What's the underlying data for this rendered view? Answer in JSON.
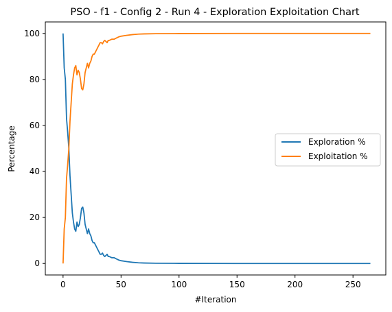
{
  "chart_data": {
    "type": "line",
    "title": "PSO - f1 - Config 2 - Run 4 - Exploration Exploitation Chart",
    "xlabel": "#Iteration",
    "ylabel": "Percentage",
    "xlim": [
      -15.3,
      278.3
    ],
    "ylim": [
      -5,
      105
    ],
    "xticks": [
      0,
      50,
      100,
      150,
      200,
      250
    ],
    "yticks": [
      0,
      20,
      40,
      60,
      80,
      100
    ],
    "grid": false,
    "legend_position": "center-right",
    "series": [
      {
        "name": "Exploration %",
        "color": "#1f77b4",
        "points": [
          [
            0,
            100
          ],
          [
            1,
            85
          ],
          [
            2,
            80
          ],
          [
            3,
            63
          ],
          [
            4,
            57
          ],
          [
            5,
            50
          ],
          [
            6,
            38
          ],
          [
            7,
            30
          ],
          [
            8,
            22
          ],
          [
            9,
            18
          ],
          [
            10,
            15
          ],
          [
            11,
            14
          ],
          [
            12,
            18
          ],
          [
            13,
            16
          ],
          [
            14,
            17
          ],
          [
            15,
            20
          ],
          [
            16,
            24
          ],
          [
            17,
            24.5
          ],
          [
            18,
            22
          ],
          [
            19,
            17
          ],
          [
            20,
            15
          ],
          [
            21,
            13
          ],
          [
            22,
            15
          ],
          [
            23,
            13
          ],
          [
            24,
            12
          ],
          [
            25,
            10
          ],
          [
            26,
            9
          ],
          [
            27,
            9
          ],
          [
            28,
            8
          ],
          [
            29,
            7
          ],
          [
            30,
            6
          ],
          [
            31,
            5
          ],
          [
            32,
            4
          ],
          [
            33,
            4
          ],
          [
            34,
            4.5
          ],
          [
            35,
            3.5
          ],
          [
            36,
            3
          ],
          [
            37,
            3.5
          ],
          [
            38,
            4
          ],
          [
            39,
            3
          ],
          [
            40,
            3
          ],
          [
            42,
            2.5
          ],
          [
            44,
            2.5
          ],
          [
            46,
            2
          ],
          [
            48,
            1.5
          ],
          [
            50,
            1.2
          ],
          [
            55,
            0.8
          ],
          [
            60,
            0.5
          ],
          [
            65,
            0.3
          ],
          [
            70,
            0.2
          ],
          [
            80,
            0.1
          ],
          [
            100,
            0.05
          ],
          [
            150,
            0
          ],
          [
            200,
            0
          ],
          [
            265,
            0
          ]
        ]
      },
      {
        "name": "Exploitation %",
        "color": "#ff7f0e",
        "points": [
          [
            0,
            0
          ],
          [
            1,
            15
          ],
          [
            2,
            20
          ],
          [
            3,
            37
          ],
          [
            4,
            43
          ],
          [
            5,
            50
          ],
          [
            6,
            62
          ],
          [
            7,
            70
          ],
          [
            8,
            78
          ],
          [
            9,
            82
          ],
          [
            10,
            85
          ],
          [
            11,
            86
          ],
          [
            12,
            82
          ],
          [
            13,
            84
          ],
          [
            14,
            83
          ],
          [
            15,
            80
          ],
          [
            16,
            76
          ],
          [
            17,
            75.5
          ],
          [
            18,
            78
          ],
          [
            19,
            83
          ],
          [
            20,
            85
          ],
          [
            21,
            87
          ],
          [
            22,
            85
          ],
          [
            23,
            87
          ],
          [
            24,
            88
          ],
          [
            25,
            90
          ],
          [
            26,
            91
          ],
          [
            27,
            91
          ],
          [
            28,
            92
          ],
          [
            29,
            93
          ],
          [
            30,
            94
          ],
          [
            31,
            95
          ],
          [
            32,
            96
          ],
          [
            33,
            96
          ],
          [
            34,
            95.5
          ],
          [
            35,
            96.5
          ],
          [
            36,
            97
          ],
          [
            37,
            96.5
          ],
          [
            38,
            96
          ],
          [
            39,
            97
          ],
          [
            40,
            97
          ],
          [
            42,
            97.5
          ],
          [
            44,
            97.5
          ],
          [
            46,
            98
          ],
          [
            48,
            98.5
          ],
          [
            50,
            98.8
          ],
          [
            55,
            99.2
          ],
          [
            60,
            99.5
          ],
          [
            65,
            99.7
          ],
          [
            70,
            99.8
          ],
          [
            80,
            99.9
          ],
          [
            100,
            99.95
          ],
          [
            150,
            100
          ],
          [
            200,
            100
          ],
          [
            265,
            100
          ]
        ]
      }
    ]
  }
}
